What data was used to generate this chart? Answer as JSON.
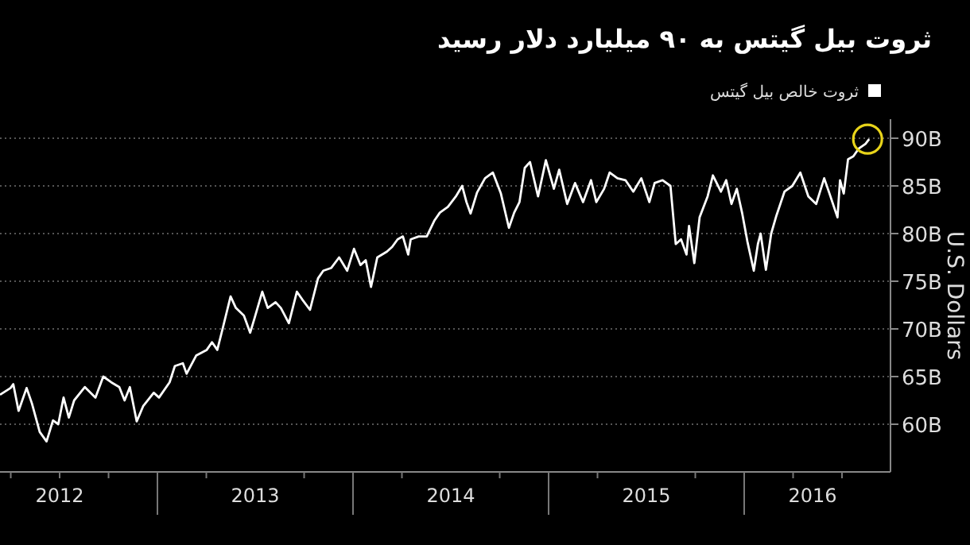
{
  "chart_data": {
    "type": "line",
    "title": "ثروت بیل گیتس به ۹۰ میلیارد دلار رسید",
    "ylabel": "U.S. Dollars",
    "legend": "top right",
    "grid": "y",
    "xlim": [
      2012.195,
      2016.748
    ],
    "xticks": [
      {
        "value": 2012.25,
        "label": null
      },
      {
        "value": 2012.5,
        "label": null
      },
      {
        "value": 2012.5,
        "label": "2012"
      },
      {
        "value": 2012.75,
        "label": null
      },
      {
        "value": 2013,
        "label": null
      },
      {
        "value": 2013.25,
        "label": null
      },
      {
        "value": 2013.5,
        "label": "2013"
      },
      {
        "value": 2013.75,
        "label": null
      },
      {
        "value": 2014,
        "label": null
      },
      {
        "value": 2014.25,
        "label": null
      },
      {
        "value": 2014.5,
        "label": "2014"
      },
      {
        "value": 2014.75,
        "label": null
      },
      {
        "value": 2015,
        "label": null
      },
      {
        "value": 2015.25,
        "label": null
      },
      {
        "value": 2015.5,
        "label": "2015"
      },
      {
        "value": 2015.75,
        "label": null
      },
      {
        "value": 2016,
        "label": null
      },
      {
        "value": 2016.25,
        "label": null
      },
      {
        "value": 2016.35,
        "label": "2016"
      },
      {
        "value": 2016.5,
        "label": null
      }
    ],
    "ylim": [
      55,
      92
    ],
    "yticks": [
      {
        "value": 60,
        "label": "60B"
      },
      {
        "value": 65,
        "label": "65B"
      },
      {
        "value": 70,
        "label": "70B"
      },
      {
        "value": 75,
        "label": "75B"
      },
      {
        "value": 80,
        "label": "80B"
      },
      {
        "value": 85,
        "label": "85B"
      },
      {
        "value": 90,
        "label": "90B"
      }
    ],
    "series": [
      {
        "name": "ثروت خالص بیل گیتس",
        "color": "#ffffff",
        "x": [
          2012.195,
          2012.249,
          2012.263,
          2012.29,
          2012.331,
          2012.358,
          2012.398,
          2012.433,
          2012.466,
          2012.493,
          2012.52,
          2012.547,
          2012.574,
          2012.629,
          2012.683,
          2012.723,
          2012.764,
          2012.805,
          2012.832,
          2012.859,
          2012.894,
          2012.927,
          2012.981,
          2013.008,
          2013.062,
          2013.089,
          2013.13,
          2013.149,
          2013.198,
          2013.252,
          2013.279,
          2013.306,
          2013.333,
          2013.374,
          2013.401,
          2013.442,
          2013.474,
          2013.496,
          2013.536,
          2013.564,
          2013.604,
          2013.631,
          2013.672,
          2013.713,
          2013.74,
          2013.78,
          2013.821,
          2013.848,
          2013.889,
          2013.929,
          2013.97,
          2014.005,
          2014.038,
          2014.065,
          2014.092,
          2014.124,
          2014.173,
          2014.2,
          2014.228,
          2014.255,
          2014.282,
          2014.295,
          2014.336,
          2014.377,
          2014.417,
          2014.444,
          2014.485,
          2014.526,
          2014.558,
          2014.58,
          2014.601,
          2014.634,
          2014.675,
          2014.715,
          2014.756,
          2014.797,
          2014.824,
          2014.851,
          2014.878,
          2014.905,
          2014.946,
          2014.986,
          2015.027,
          2015.054,
          2015.095,
          2015.135,
          2015.176,
          2015.217,
          2015.244,
          2015.284,
          2015.312,
          2015.352,
          2015.393,
          2015.433,
          2015.474,
          2015.515,
          2015.542,
          2015.583,
          2015.623,
          2015.65,
          2015.677,
          2015.705,
          2015.718,
          2015.745,
          2015.772,
          2015.813,
          2015.84,
          2015.881,
          2015.908,
          2015.935,
          2015.962,
          2015.989,
          2016.016,
          2016.049,
          2016.07,
          2016.084,
          2016.111,
          2016.138,
          2016.165,
          2016.206,
          2016.246,
          2016.287,
          2016.328,
          2016.368,
          2016.409,
          2016.436,
          2016.477,
          2016.49,
          2016.509,
          2016.531,
          2016.558,
          2016.585,
          2016.62,
          2016.639
        ],
        "values": [
          63.1,
          63.8,
          64.2,
          61.4,
          63.8,
          62.2,
          59.2,
          58.2,
          60.4,
          60.0,
          62.8,
          60.7,
          62.5,
          63.9,
          62.8,
          65.0,
          64.4,
          63.9,
          62.5,
          63.9,
          60.3,
          61.9,
          63.3,
          62.8,
          64.4,
          66.1,
          66.4,
          65.3,
          67.2,
          67.8,
          68.6,
          67.8,
          70.0,
          73.4,
          72.2,
          71.4,
          69.6,
          71.1,
          73.9,
          72.2,
          72.8,
          72.2,
          70.6,
          73.9,
          73.1,
          72.0,
          75.3,
          76.1,
          76.4,
          77.5,
          76.1,
          78.4,
          76.7,
          77.2,
          74.4,
          77.5,
          78.1,
          78.6,
          79.4,
          79.7,
          77.8,
          79.4,
          79.7,
          79.7,
          81.4,
          82.2,
          82.8,
          83.9,
          85.0,
          83.3,
          82.1,
          84.3,
          85.8,
          86.4,
          84.2,
          80.6,
          82.2,
          83.3,
          86.9,
          87.5,
          83.9,
          87.7,
          84.7,
          86.7,
          83.1,
          85.3,
          83.3,
          85.6,
          83.3,
          84.7,
          86.4,
          85.8,
          85.6,
          84.4,
          85.8,
          83.3,
          85.3,
          85.6,
          85.0,
          78.9,
          79.4,
          77.8,
          80.8,
          76.9,
          81.7,
          83.9,
          86.1,
          84.4,
          85.6,
          83.1,
          84.7,
          82.2,
          79.2,
          76.1,
          78.9,
          80.0,
          76.2,
          80.0,
          81.9,
          84.4,
          85.0,
          86.4,
          83.9,
          83.1,
          85.8,
          84.2,
          81.7,
          85.6,
          84.2,
          87.8,
          88.1,
          88.9,
          89.4,
          89.9
        ]
      }
    ]
  }
}
